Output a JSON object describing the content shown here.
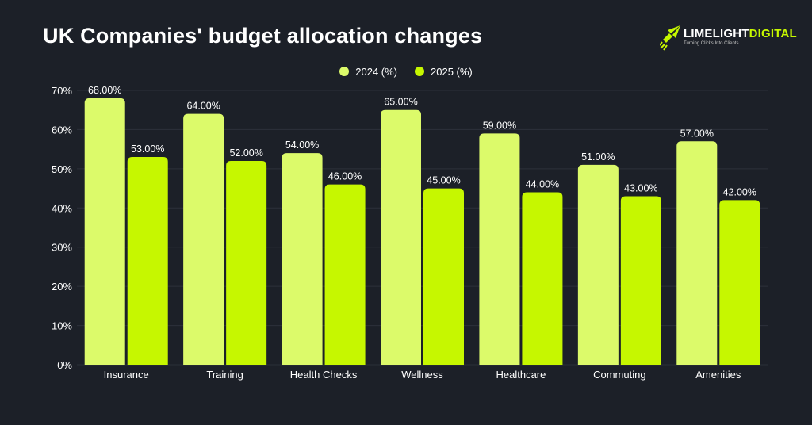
{
  "chart_data": {
    "type": "bar",
    "title": "UK Companies' budget allocation changes",
    "categories": [
      "Insurance",
      "Training",
      "Health Checks",
      "Wellness",
      "Healthcare",
      "Commuting",
      "Amenities"
    ],
    "series": [
      {
        "name": "2024 (%)",
        "values": [
          68,
          64,
          54,
          65,
          59,
          51,
          57
        ],
        "labels": [
          "68.00%",
          "64.00%",
          "54.00%",
          "65.00%",
          "59.00%",
          "51.00%",
          "57.00%"
        ],
        "color": "#dcfa6a"
      },
      {
        "name": "2025 (%)",
        "values": [
          53,
          52,
          46,
          45,
          44,
          43,
          42
        ],
        "labels": [
          "53.00%",
          "52.00%",
          "46.00%",
          "45.00%",
          "44.00%",
          "43.00%",
          "42.00%"
        ],
        "color": "#c6f700"
      }
    ],
    "yticks": [
      "0%",
      "10%",
      "20%",
      "30%",
      "40%",
      "50%",
      "60%",
      "70%"
    ],
    "ylim": [
      0,
      70
    ],
    "grid": true,
    "legend_position": "top-center"
  },
  "brand": {
    "name_part1": "LIMELIGHT",
    "name_part2": "DIGITAL",
    "tagline": "Turning Clicks Into Clients"
  },
  "colors": {
    "background": "#1c2028",
    "grid": "#2c313a",
    "accent": "#c6f700"
  }
}
